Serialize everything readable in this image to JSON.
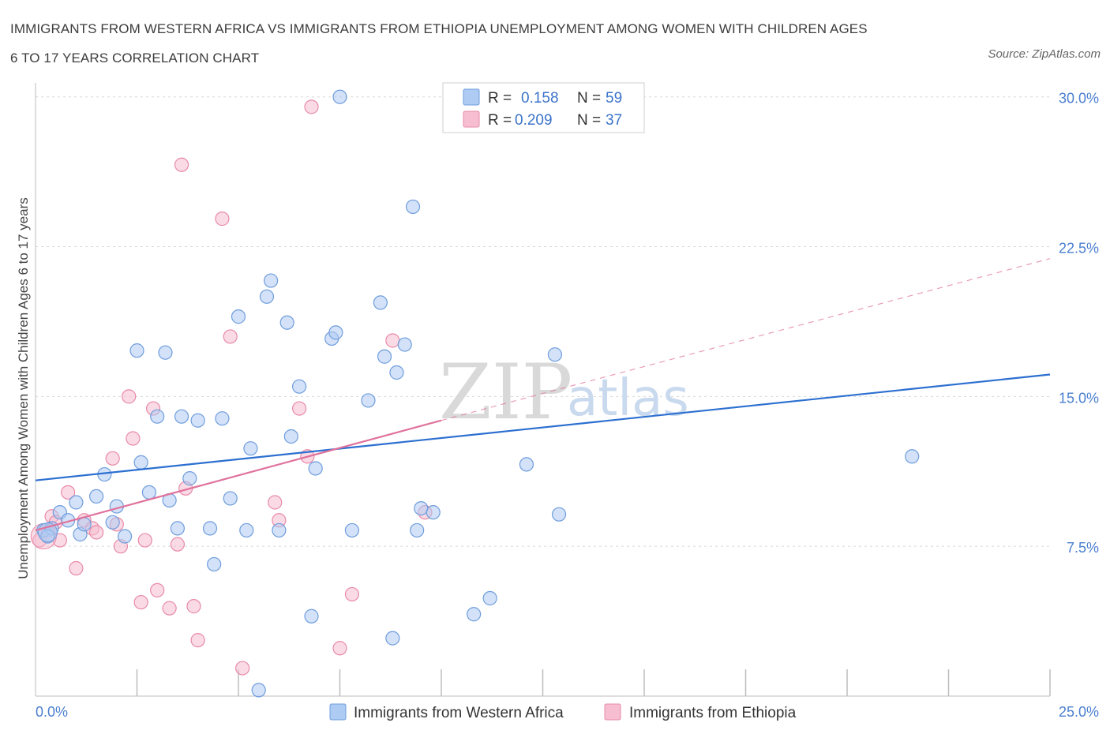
{
  "title_line1": "IMMIGRANTS FROM WESTERN AFRICA VS IMMIGRANTS FROM ETHIOPIA UNEMPLOYMENT AMONG WOMEN WITH CHILDREN AGES",
  "title_line2": "6 TO 17 YEARS CORRELATION CHART",
  "source": "Source: ZipAtlas.com",
  "watermark": {
    "zip": "ZIP",
    "atlas": "atlas"
  },
  "colors": {
    "blue_fill": "#aecbf3",
    "blue_stroke": "#6f9ddd",
    "blue_line": "#2c6fd0",
    "pink_fill": "#f6bed0",
    "pink_stroke": "#e88aa8",
    "pink_line": "#e0729c",
    "grid": "#d8d8d8",
    "axis_text": "#4a7fcf"
  },
  "legend": {
    "rows": [
      {
        "r_label": "R =",
        "r_value": "0.158",
        "n_label": "N =",
        "n_value": "59"
      },
      {
        "r_label": "R =",
        "r_value": "0.209",
        "n_label": "N =",
        "n_value": "37"
      }
    ]
  },
  "chart_data": {
    "type": "scatter",
    "title": "IMMIGRANTS FROM WESTERN AFRICA VS IMMIGRANTS FROM ETHIOPIA UNEMPLOYMENT AMONG WOMEN WITH CHILDREN AGES 6 TO 17 YEARS CORRELATION CHART",
    "xlabel": "",
    "ylabel": "Unemployment Among Women with Children Ages 6 to 17 years",
    "xlim": [
      0,
      25
    ],
    "ylim": [
      0,
      30.7
    ],
    "x_tick_labels": [
      {
        "value": 0,
        "label": "0.0%"
      },
      {
        "value": 25,
        "label": "25.0%"
      }
    ],
    "y_tick_labels": [
      {
        "value": 7.5,
        "label": "7.5%"
      },
      {
        "value": 15,
        "label": "15.0%"
      },
      {
        "value": 22.5,
        "label": "22.5%"
      },
      {
        "value": 30,
        "label": "30.0%"
      }
    ],
    "x_minor_ticks": [
      2.5,
      5,
      7.5,
      10,
      12.5,
      15,
      17.5,
      20,
      22.5,
      25
    ],
    "grid": true,
    "legend_position": "bottom",
    "series": [
      {
        "name": "Immigrants from Western Africa",
        "R": 0.158,
        "N": 59,
        "trend": {
          "x0": 0,
          "y0": 10.8,
          "x1": 25,
          "y1": 16.1
        },
        "points": [
          [
            0.2,
            8.3
          ],
          [
            0.4,
            8.4
          ],
          [
            0.6,
            9.2
          ],
          [
            0.8,
            8.8
          ],
          [
            1.0,
            9.7
          ],
          [
            1.1,
            8.1
          ],
          [
            1.2,
            8.6
          ],
          [
            1.5,
            10.0
          ],
          [
            1.7,
            11.1
          ],
          [
            1.9,
            8.7
          ],
          [
            2.0,
            9.5
          ],
          [
            2.2,
            8.0
          ],
          [
            2.5,
            17.3
          ],
          [
            2.6,
            11.7
          ],
          [
            2.8,
            10.2
          ],
          [
            3.0,
            14.0
          ],
          [
            3.2,
            17.2
          ],
          [
            3.3,
            9.8
          ],
          [
            3.5,
            8.4
          ],
          [
            3.6,
            14.0
          ],
          [
            3.8,
            10.9
          ],
          [
            4.0,
            13.8
          ],
          [
            4.3,
            8.4
          ],
          [
            4.4,
            6.6
          ],
          [
            4.6,
            13.9
          ],
          [
            4.8,
            9.9
          ],
          [
            5.0,
            19.0
          ],
          [
            5.2,
            8.3
          ],
          [
            5.3,
            12.4
          ],
          [
            5.5,
            0.3
          ],
          [
            5.7,
            20.0
          ],
          [
            5.8,
            20.8
          ],
          [
            6.0,
            8.3
          ],
          [
            6.2,
            18.7
          ],
          [
            6.3,
            13.0
          ],
          [
            6.5,
            15.5
          ],
          [
            6.8,
            4.0
          ],
          [
            6.9,
            11.4
          ],
          [
            7.3,
            17.9
          ],
          [
            7.4,
            18.2
          ],
          [
            7.5,
            30.0
          ],
          [
            7.8,
            8.3
          ],
          [
            8.2,
            14.8
          ],
          [
            8.5,
            19.7
          ],
          [
            8.6,
            17.0
          ],
          [
            8.8,
            2.9
          ],
          [
            8.9,
            16.2
          ],
          [
            9.1,
            17.6
          ],
          [
            9.3,
            24.5
          ],
          [
            9.4,
            8.3
          ],
          [
            9.5,
            9.4
          ],
          [
            9.8,
            9.2
          ],
          [
            10.8,
            4.1
          ],
          [
            11.2,
            4.9
          ],
          [
            12.1,
            11.6
          ],
          [
            12.8,
            17.1
          ],
          [
            12.9,
            9.1
          ],
          [
            21.6,
            12.0
          ],
          [
            0.3,
            8.0
          ]
        ]
      },
      {
        "name": "Immigrants from Ethiopia",
        "R": 0.209,
        "N": 37,
        "trend": {
          "x0": 0,
          "y0": 8.3,
          "x1": 10.0,
          "y1": 13.8
        },
        "trend_dashed": {
          "x0": 10.0,
          "y0": 13.8,
          "x1": 25,
          "y1": 21.9
        },
        "points": [
          [
            0.1,
            7.8
          ],
          [
            0.3,
            8.3
          ],
          [
            0.4,
            9.0
          ],
          [
            0.5,
            8.7
          ],
          [
            0.6,
            7.8
          ],
          [
            0.8,
            10.2
          ],
          [
            1.0,
            6.4
          ],
          [
            1.2,
            8.8
          ],
          [
            1.4,
            8.4
          ],
          [
            1.5,
            8.2
          ],
          [
            1.9,
            11.9
          ],
          [
            2.0,
            8.6
          ],
          [
            2.1,
            7.5
          ],
          [
            2.3,
            15.0
          ],
          [
            2.4,
            12.9
          ],
          [
            2.6,
            4.7
          ],
          [
            2.7,
            7.8
          ],
          [
            2.9,
            14.4
          ],
          [
            3.0,
            5.3
          ],
          [
            3.3,
            4.4
          ],
          [
            3.5,
            7.6
          ],
          [
            3.6,
            26.6
          ],
          [
            3.7,
            10.4
          ],
          [
            3.9,
            4.5
          ],
          [
            4.0,
            2.8
          ],
          [
            4.6,
            23.9
          ],
          [
            4.8,
            18.0
          ],
          [
            5.1,
            1.4
          ],
          [
            5.9,
            9.7
          ],
          [
            6.0,
            8.8
          ],
          [
            6.5,
            14.4
          ],
          [
            6.7,
            12.0
          ],
          [
            6.8,
            29.5
          ],
          [
            7.5,
            2.4
          ],
          [
            7.8,
            5.1
          ],
          [
            8.8,
            17.8
          ],
          [
            9.6,
            9.2
          ]
        ]
      }
    ]
  }
}
